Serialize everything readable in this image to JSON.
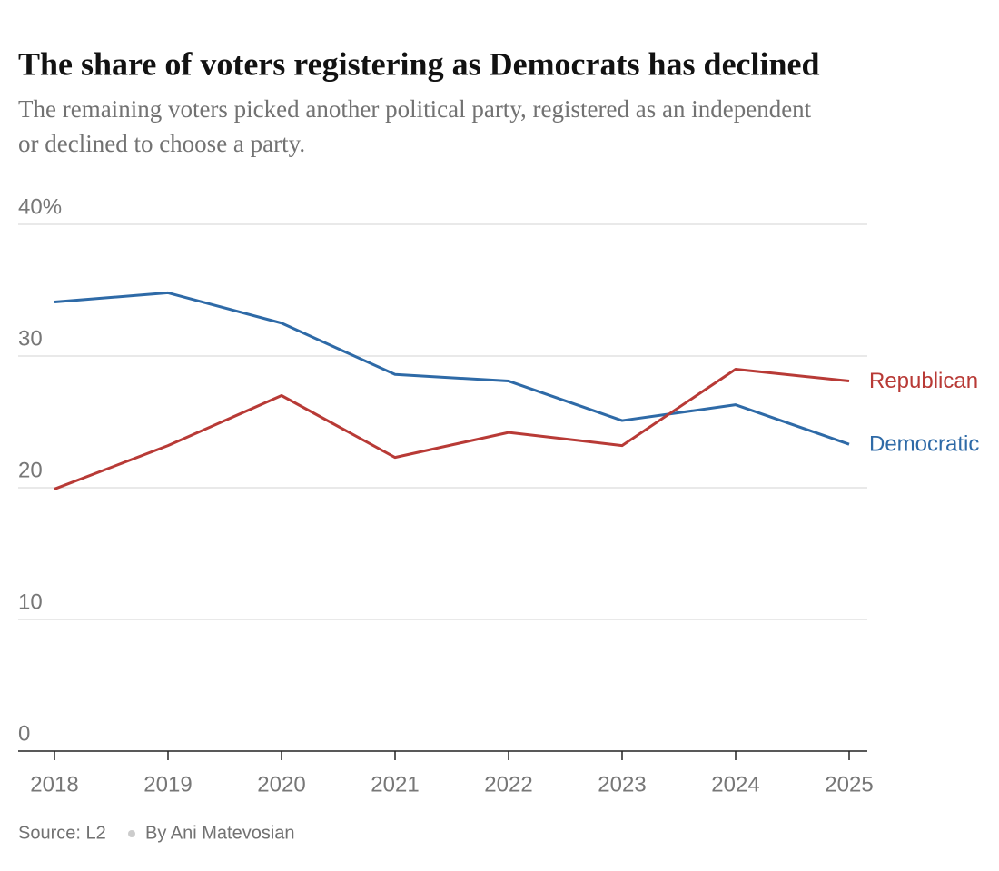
{
  "chart_data": {
    "type": "line",
    "title": "The share of voters registering as Democrats has declined",
    "subtitle": [
      "The remaining voters picked another political party, registered as an independent",
      "or declined to choose a party."
    ],
    "categories": [
      "2018",
      "2019",
      "2020",
      "2021",
      "2022",
      "2023",
      "2024",
      "2025"
    ],
    "series": [
      {
        "name": "Democratic",
        "color": "#2e6aa7",
        "values": [
          34.1,
          34.8,
          32.5,
          28.6,
          28.1,
          25.1,
          26.3,
          23.3
        ]
      },
      {
        "name": "Republican",
        "color": "#b83a36",
        "values": [
          19.9,
          23.2,
          27.0,
          22.3,
          24.2,
          23.2,
          29.0,
          28.1
        ]
      }
    ],
    "ylim": [
      0,
      40
    ],
    "yticks": [
      0,
      10,
      20,
      30,
      {
        "value": 40,
        "label": "40%"
      }
    ],
    "grid": true,
    "source": "Source: L2",
    "byline": "By Ani Matevosian"
  }
}
